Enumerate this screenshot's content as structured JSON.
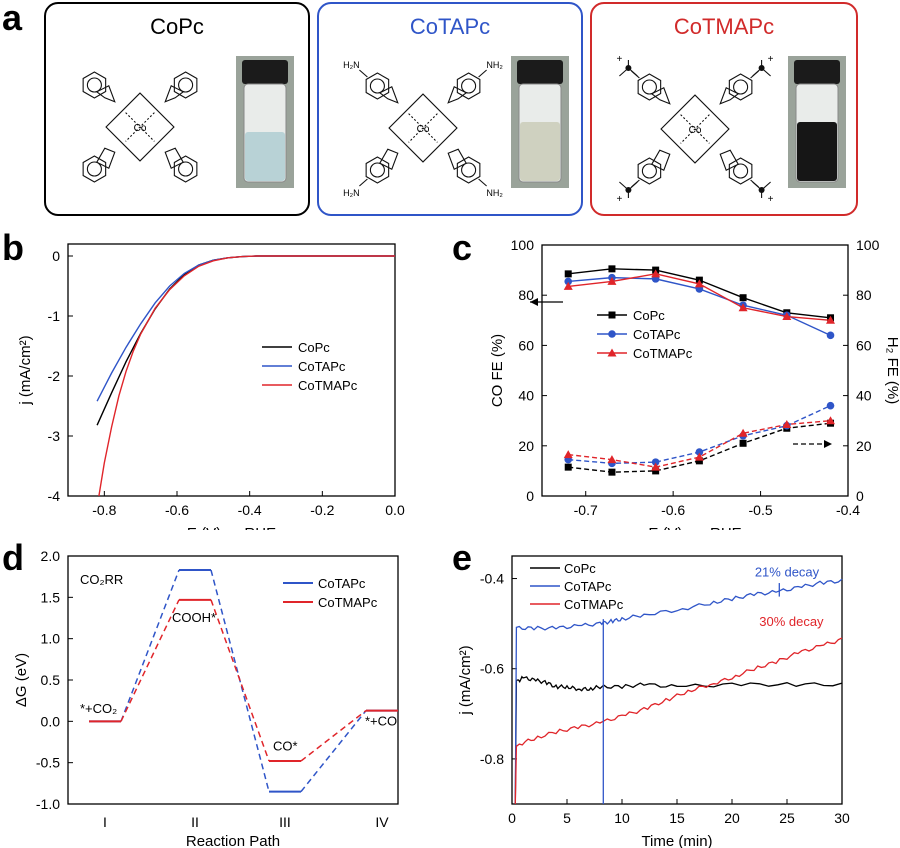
{
  "panel_letters": {
    "a": "a",
    "b": "b",
    "c": "c",
    "d": "d",
    "e": "e"
  },
  "panel_a": {
    "molecules": [
      {
        "name": "CoPc",
        "color": "#000000",
        "substituent": "",
        "vial_liquid": "#b8d2d6"
      },
      {
        "name": "CoTAPc",
        "color": "#2f55c8",
        "substituent": "NH2",
        "vial_liquid": "#cfd1c0"
      },
      {
        "name": "CoTMAPc",
        "color": "#d12a2a",
        "substituent": "NMe3+",
        "vial_liquid": "#161616"
      }
    ],
    "center_label": "Co",
    "amine_label": "H₂N",
    "amine_label_r": "NH₂",
    "plus": "+"
  },
  "chart_data": [
    {
      "panel": "b",
      "type": "line",
      "xlabel": "E (V) vs.RHE",
      "ylabel": "j (mA/cm²)",
      "xlim": [
        -0.9,
        0.0
      ],
      "ylim": [
        -4,
        0.2
      ],
      "xticks": [
        "-0.8",
        "-0.6",
        "-0.4",
        "-0.2",
        "0.0"
      ],
      "yticks": [
        "0",
        "-1",
        "-2",
        "-3",
        "-4"
      ],
      "legend": "center-right",
      "series": [
        {
          "name": "CoPc",
          "color": "#000000",
          "x": [
            -0.82,
            -0.78,
            -0.74,
            -0.7,
            -0.66,
            -0.62,
            -0.58,
            -0.54,
            -0.5,
            -0.46,
            -0.42,
            -0.38,
            -0.3,
            -0.2,
            -0.1,
            0.0
          ],
          "y": [
            -2.82,
            -2.28,
            -1.76,
            -1.29,
            -0.88,
            -0.55,
            -0.31,
            -0.15,
            -0.07,
            -0.03,
            -0.01,
            0.0,
            0.0,
            0.0,
            0.0,
            0.0
          ]
        },
        {
          "name": "CoTAPc",
          "color": "#2f55c8",
          "x": [
            -0.82,
            -0.78,
            -0.74,
            -0.7,
            -0.66,
            -0.62,
            -0.58,
            -0.54,
            -0.5,
            -0.46,
            -0.42,
            -0.38,
            -0.3,
            -0.2,
            -0.1,
            0.0
          ],
          "y": [
            -2.42,
            -1.95,
            -1.52,
            -1.13,
            -0.78,
            -0.5,
            -0.29,
            -0.15,
            -0.07,
            -0.03,
            -0.01,
            0.0,
            0.0,
            0.0,
            0.0,
            0.0
          ]
        },
        {
          "name": "CoTMAPc",
          "color": "#e0252a",
          "x": [
            -0.815,
            -0.8,
            -0.78,
            -0.76,
            -0.74,
            -0.72,
            -0.7,
            -0.66,
            -0.62,
            -0.58,
            -0.54,
            -0.5,
            -0.46,
            -0.42,
            -0.38,
            -0.3,
            -0.2,
            -0.1,
            0.0
          ],
          "y": [
            -4.0,
            -3.45,
            -2.85,
            -2.33,
            -1.92,
            -1.58,
            -1.3,
            -0.87,
            -0.56,
            -0.33,
            -0.17,
            -0.08,
            -0.03,
            -0.01,
            0.0,
            0.0,
            0.0,
            0.0,
            0.0
          ]
        }
      ]
    },
    {
      "panel": "c",
      "type": "line",
      "xlabel": "E (V) vs. RHE",
      "ylabel": "CO FE (%)",
      "ylabel_right": "H₂ FE (%)",
      "xlim": [
        -0.75,
        -0.4
      ],
      "ylim": [
        0,
        100
      ],
      "xticks": [
        "-0.7",
        "-0.6",
        "-0.5",
        "-0.4"
      ],
      "yticks": [
        "0",
        "20",
        "40",
        "60",
        "80",
        "100"
      ],
      "legend": "center",
      "x": [
        -0.72,
        -0.67,
        -0.62,
        -0.57,
        -0.52,
        -0.47,
        -0.42
      ],
      "series": [
        {
          "name": "CoPc",
          "color": "#000000",
          "marker": "square",
          "co": [
            88.5,
            90.5,
            90.0,
            86.0,
            79.0,
            73.0,
            71.0
          ],
          "h2": [
            11.5,
            9.5,
            10.0,
            14.0,
            21.0,
            27.0,
            29.0
          ]
        },
        {
          "name": "CoTAPc",
          "color": "#2f55c8",
          "marker": "circle",
          "co": [
            85.5,
            87.0,
            86.5,
            82.5,
            76.0,
            72.0,
            64.0
          ],
          "h2": [
            14.5,
            13.0,
            13.5,
            17.5,
            24.0,
            28.0,
            36.0
          ]
        },
        {
          "name": "CoTMAPc",
          "color": "#e0252a",
          "marker": "triangle",
          "co": [
            83.5,
            85.5,
            88.5,
            84.5,
            75.0,
            71.5,
            70.0
          ],
          "h2": [
            16.5,
            14.5,
            11.5,
            15.5,
            25.0,
            28.5,
            30.0
          ]
        }
      ]
    },
    {
      "panel": "d",
      "type": "line",
      "xlabel": "Reaction Path",
      "ylabel": "ΔG (eV)",
      "ylim": [
        -1.0,
        2.0
      ],
      "xticks": [
        "I",
        "II",
        "III",
        "IV"
      ],
      "yticks": [
        "-1.0",
        "-0.5",
        "0.0",
        "0.5",
        "1.0",
        "1.5",
        "2.0"
      ],
      "legend": "top-right",
      "title": "CO₂RR",
      "annotations": [
        "*+CO₂",
        "COOH*",
        "CO*",
        "*+CO"
      ],
      "series": [
        {
          "name": "CoTAPc",
          "color": "#2f55c8",
          "levels": [
            0.0,
            1.83,
            -0.85,
            0.13
          ]
        },
        {
          "name": "CoTMAPc",
          "color": "#e0252a",
          "levels": [
            0.0,
            1.47,
            -0.48,
            0.13
          ]
        }
      ]
    },
    {
      "panel": "e",
      "type": "line",
      "xlabel": "Time (min)",
      "ylabel": "j (mA/cm²)",
      "xlim": [
        0,
        30
      ],
      "ylim": [
        -0.9,
        -0.35
      ],
      "xticks": [
        "0",
        "5",
        "10",
        "15",
        "20",
        "25",
        "30"
      ],
      "yticks": [
        "-0.4",
        "-0.6",
        "-0.8"
      ],
      "legend": "top-left",
      "annotations": [
        {
          "text": "21% decay",
          "color": "#2f55c8"
        },
        {
          "text": "30% decay",
          "color": "#e0252a"
        }
      ],
      "series": [
        {
          "name": "CoPc",
          "color": "#000000",
          "x": [
            0.4,
            1,
            2,
            3,
            4,
            5,
            6,
            7,
            8,
            10,
            12,
            15,
            20,
            25,
            30
          ],
          "y": [
            -0.63,
            -0.62,
            -0.625,
            -0.63,
            -0.64,
            -0.64,
            -0.645,
            -0.645,
            -0.64,
            -0.64,
            -0.635,
            -0.64,
            -0.635,
            -0.635,
            -0.635
          ]
        },
        {
          "name": "CoTAPc",
          "color": "#2f55c8",
          "x": [
            0.4,
            2,
            4,
            6,
            8,
            9,
            10,
            12,
            15,
            18,
            20,
            22,
            24,
            26,
            28,
            30
          ],
          "y": [
            -0.51,
            -0.51,
            -0.51,
            -0.505,
            -0.5,
            -0.495,
            -0.49,
            -0.48,
            -0.47,
            -0.455,
            -0.445,
            -0.435,
            -0.43,
            -0.42,
            -0.41,
            -0.405
          ]
        },
        {
          "name": "CoTMAPc",
          "color": "#e0252a",
          "x": [
            0.4,
            2,
            4,
            6,
            8,
            10,
            12,
            14,
            16,
            18,
            20,
            22,
            24,
            26,
            28,
            30
          ],
          "y": [
            -0.77,
            -0.755,
            -0.74,
            -0.73,
            -0.72,
            -0.705,
            -0.69,
            -0.67,
            -0.65,
            -0.635,
            -0.62,
            -0.6,
            -0.585,
            -0.565,
            -0.55,
            -0.535
          ]
        }
      ]
    }
  ]
}
